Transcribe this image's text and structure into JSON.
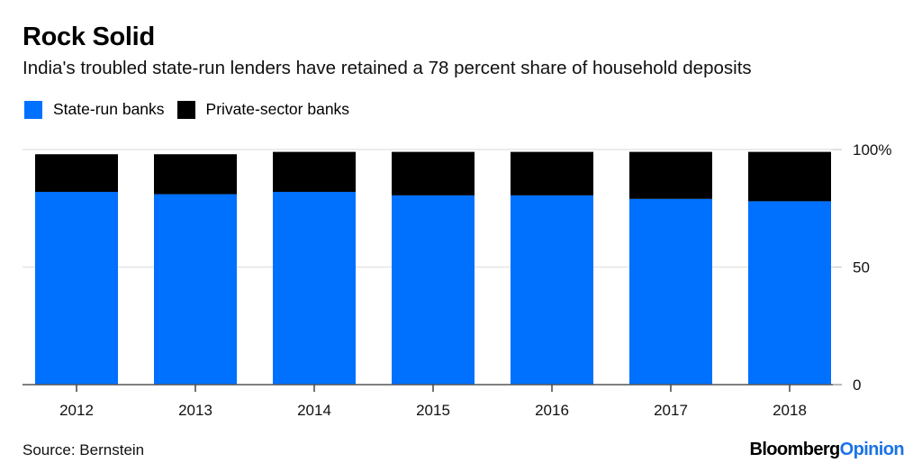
{
  "header": {
    "title": "Rock Solid",
    "subtitle": "India's troubled state-run lenders have retained a 78 percent share of household deposits"
  },
  "legend": [
    {
      "label": "State-run banks",
      "color": "#0070ff"
    },
    {
      "label": "Private-sector banks",
      "color": "#000000"
    }
  ],
  "footer": {
    "source": "Source: Bernstein",
    "brand_primary": "Bloomberg",
    "brand_secondary": "Opinion",
    "brand_secondary_color": "#1a73e8"
  },
  "chart_data": {
    "type": "bar",
    "stacked": true,
    "title": "Rock Solid",
    "subtitle": "India's troubled state-run lenders have retained a 78 percent share of household deposits",
    "xlabel": "",
    "ylabel": "",
    "categories": [
      "2012",
      "2013",
      "2014",
      "2015",
      "2016",
      "2017",
      "2018"
    ],
    "series": [
      {
        "name": "State-run banks",
        "color": "#0070ff",
        "values": [
          82,
          81,
          82,
          80.5,
          80.5,
          79,
          78
        ]
      },
      {
        "name": "Private-sector banks",
        "color": "#000000",
        "values": [
          16,
          17,
          17,
          18.5,
          18.5,
          20,
          21
        ]
      }
    ],
    "ylim": [
      0,
      100
    ],
    "yticks": [
      0,
      50,
      100
    ],
    "ytick_labels": [
      "0",
      "50",
      "100%"
    ],
    "y_axis_side": "right",
    "grid": true,
    "legend_position": "top-left",
    "source": "Source: Bernstein"
  }
}
